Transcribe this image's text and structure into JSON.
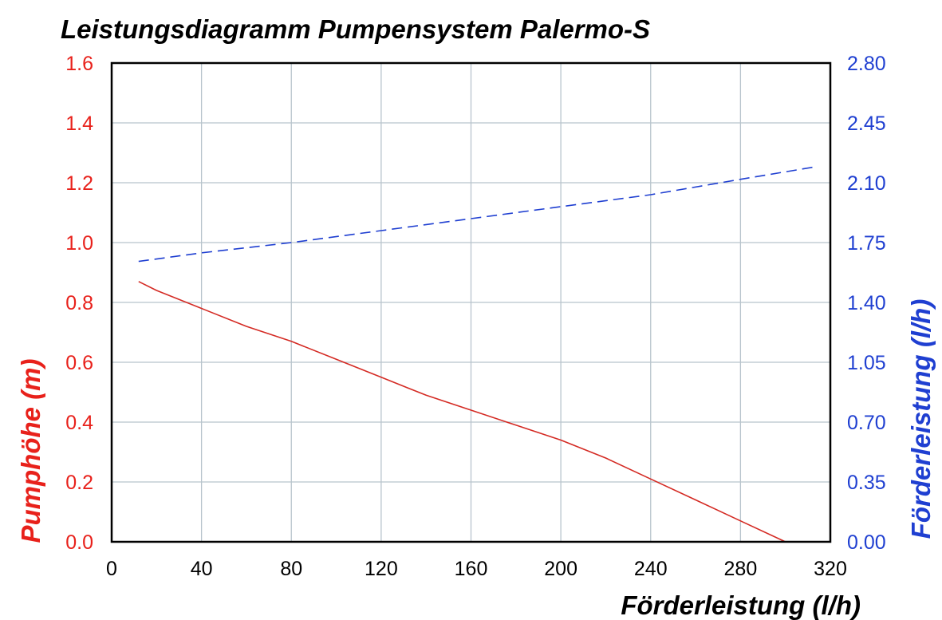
{
  "chart_data": {
    "type": "line",
    "title": "Leistungsdiagramm Pumpensystem Palermo-S",
    "xlabel": "Förderleistung (l/h)",
    "ylabel_left": "Pumphöhe (m)",
    "ylabel_right": "Förderleistung (l/h)",
    "xlim": [
      0,
      320
    ],
    "ylim_left": [
      0,
      1.6
    ],
    "ylim_right": [
      0,
      2.8
    ],
    "x_ticks": [
      "0",
      "40",
      "80",
      "120",
      "160",
      "200",
      "240",
      "280",
      "320"
    ],
    "y_left_ticks": [
      "0.0",
      "0.2",
      "0.4",
      "0.6",
      "0.8",
      "1.0",
      "1.2",
      "1.4",
      "1.6"
    ],
    "y_right_ticks": [
      "0.00",
      "0.35",
      "0.70",
      "1.05",
      "1.40",
      "1.75",
      "2.10",
      "2.45",
      "2.80"
    ],
    "grid": true,
    "colors": {
      "left_axis": "#e8211b",
      "right_axis": "#1f3fd1",
      "grid": "#b8c4cc",
      "frame": "#000000"
    },
    "series": [
      {
        "axis": "left",
        "style": "solid",
        "color": "#d42a23",
        "x": [
          12,
          20,
          40,
          60,
          80,
          100,
          120,
          140,
          160,
          180,
          200,
          220,
          240,
          260,
          280,
          300
        ],
        "y": [
          0.87,
          0.84,
          0.78,
          0.72,
          0.67,
          0.61,
          0.55,
          0.49,
          0.44,
          0.39,
          0.34,
          0.28,
          0.21,
          0.14,
          0.07,
          0.0
        ]
      },
      {
        "axis": "right",
        "style": "dashed",
        "color": "#1f3fd1",
        "x": [
          12,
          40,
          80,
          120,
          160,
          200,
          240,
          280,
          312
        ],
        "y": [
          1.64,
          1.69,
          1.75,
          1.82,
          1.89,
          1.96,
          2.03,
          2.12,
          2.19
        ]
      }
    ]
  }
}
